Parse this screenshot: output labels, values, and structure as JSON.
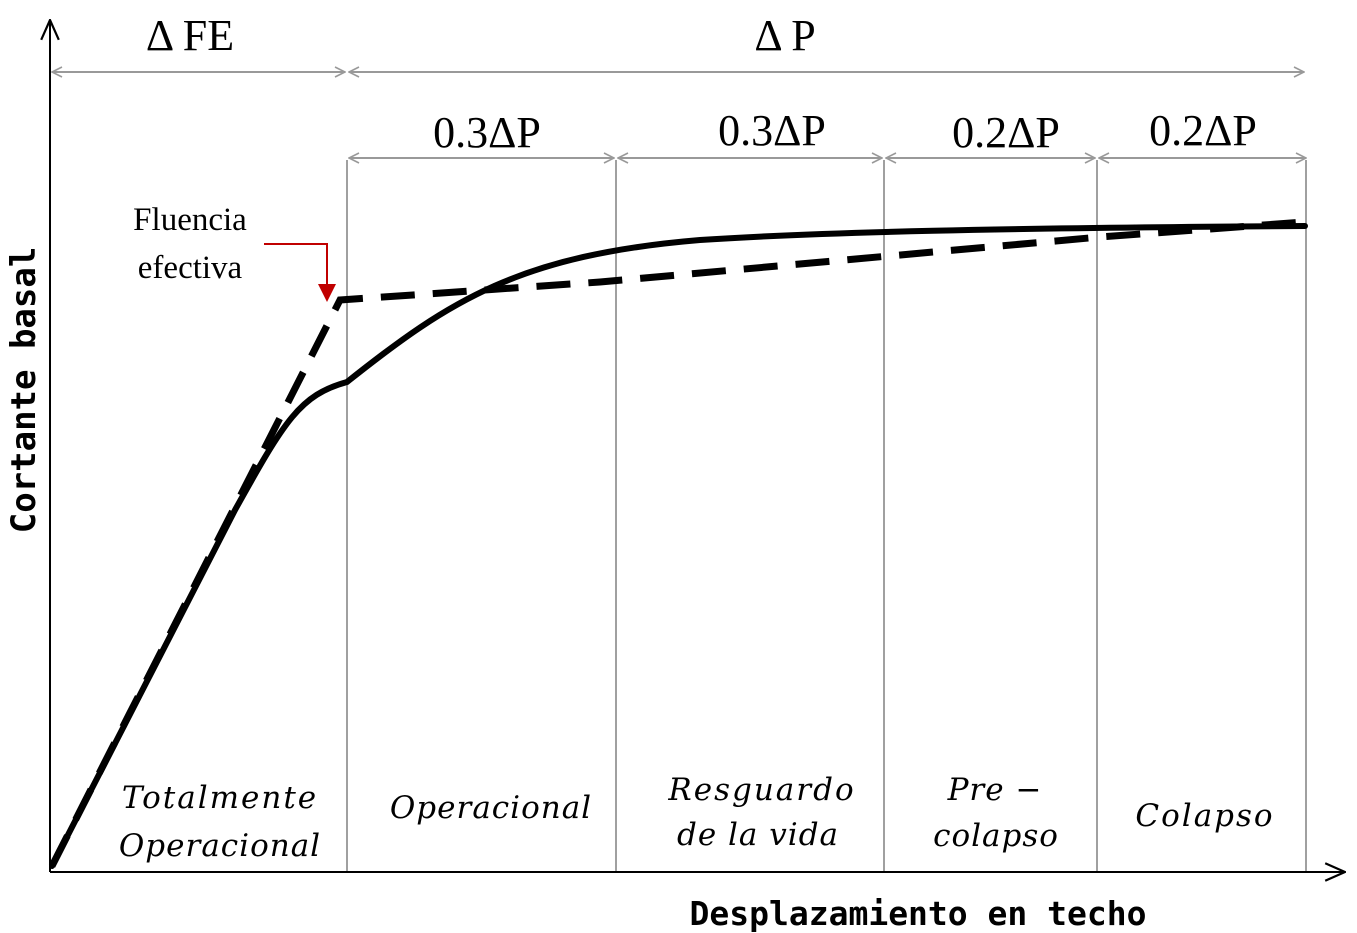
{
  "axes": {
    "y_label": "Cortante basal",
    "x_label": "Desplazamiento en techo"
  },
  "dimensions": {
    "delta_fe": "Δ FE",
    "delta_p": "Δ P",
    "segments": [
      "0.3ΔP",
      "0.3ΔP",
      "0.2ΔP",
      "0.2ΔP"
    ]
  },
  "annotation": {
    "line1": "Fluencia",
    "line2": "efectiva",
    "arrow_color": "#c00000"
  },
  "zones": [
    {
      "lines": [
        "Totalmente",
        "Operacional"
      ]
    },
    {
      "lines": [
        "Operacional"
      ]
    },
    {
      "lines": [
        "Resguardo",
        "de la vida"
      ]
    },
    {
      "lines": [
        "Pre −",
        "colapso"
      ]
    },
    {
      "lines": [
        "Colapso"
      ]
    }
  ],
  "colors": {
    "curve": "#000000",
    "guides": "#a0a0a0",
    "axis": "#000000"
  }
}
